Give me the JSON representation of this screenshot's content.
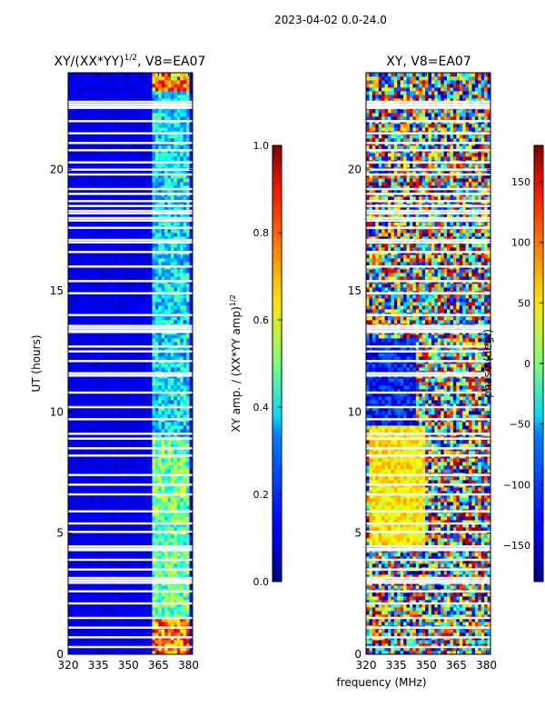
{
  "suptitle": "2023-04-02 0.0-24.0",
  "chart_data": [
    {
      "type": "heatmap",
      "title": "XY/(XX*YY)",
      "title_sup": "1/2",
      "title_suffix": ", V8=EA07",
      "xlabel": "frequency (MHz)",
      "ylabel": "UT (hours)",
      "xlim": [
        320,
        382
      ],
      "ylim": [
        0,
        24
      ],
      "xticks": [
        320,
        335,
        350,
        365,
        380
      ],
      "yticks": [
        0,
        5,
        10,
        15,
        20
      ],
      "colorbar": {
        "label": "XY amp. / (XX*YY amp)",
        "label_sup": "1/2",
        "range": [
          0.0,
          1.0
        ],
        "ticks": [
          "0.0",
          "0.2",
          "0.4",
          "0.6",
          "0.8",
          "1.0"
        ],
        "tick_values": [
          0.0,
          0.2,
          0.4,
          0.6,
          0.8,
          1.0
        ],
        "colormap": "jet"
      }
    },
    {
      "type": "heatmap",
      "title": "XY, V8=EA07",
      "xlabel": "frequency (MHz)",
      "ylabel": "",
      "xlim": [
        320,
        382
      ],
      "ylim": [
        0,
        24
      ],
      "xticks": [
        320,
        335,
        350,
        365,
        380
      ],
      "yticks": [
        0,
        5,
        10,
        15,
        20
      ],
      "colorbar": {
        "label": "phase (deg.)",
        "range": [
          -180,
          180
        ],
        "ticks": [
          "150",
          "100",
          "50",
          "0",
          "−50",
          "−100",
          "−150"
        ],
        "tick_values": [
          150,
          100,
          50,
          0,
          -50,
          -100,
          -150
        ],
        "colormap": "jet"
      }
    }
  ],
  "flagged_hours": [
    0.3,
    0.7,
    1.1,
    1.5,
    2.1,
    2.6,
    2.95,
    3.05,
    3.15,
    3.5,
    3.9,
    4.3,
    4.35,
    4.45,
    5.05,
    5.4,
    5.9,
    6.6,
    7.0,
    7.4,
    8.2,
    8.5,
    8.9,
    9.1,
    9.7,
    10.2,
    10.8,
    11.5,
    11.6,
    12.1,
    12.5,
    12.7,
    13.3,
    13.35,
    13.45,
    13.55,
    14.0,
    14.9,
    15.4,
    16.0,
    16.6,
    17.0,
    17.1,
    17.6,
    17.9,
    18.0,
    18.2,
    18.3,
    18.5,
    18.7,
    19.0,
    19.2,
    19.8,
    20.0,
    20.3,
    20.8,
    21.1,
    21.5,
    22.0,
    22.55,
    22.6,
    22.7,
    22.8
  ]
}
